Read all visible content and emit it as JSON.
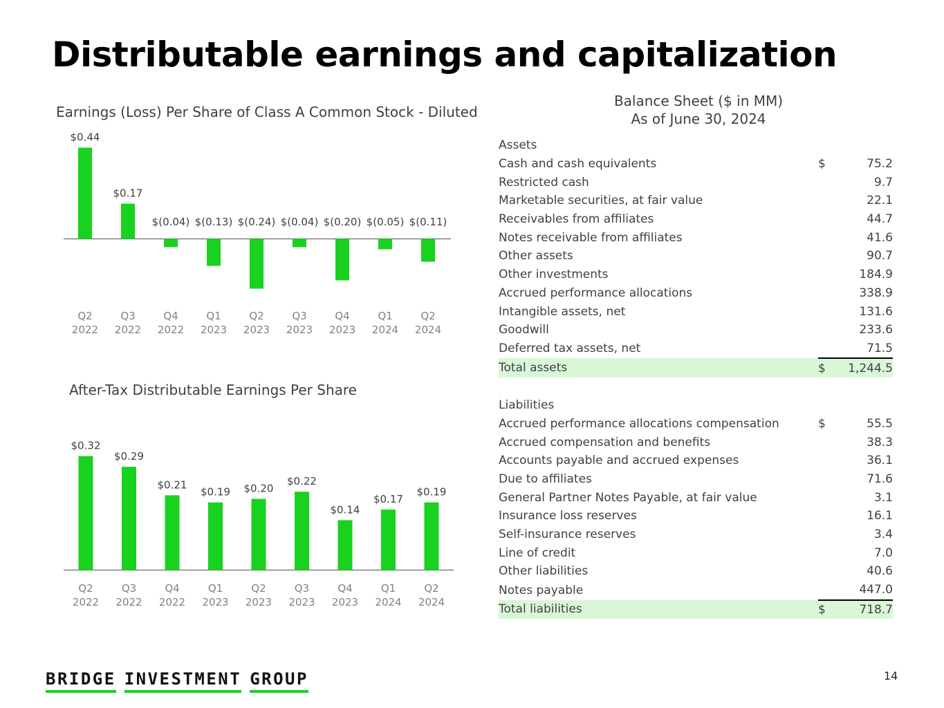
{
  "page": {
    "title": "Distributable earnings and capitalization",
    "page_number": "14",
    "brand_words": [
      "BRIDGE",
      "INVESTMENT",
      "GROUP"
    ]
  },
  "colors": {
    "bar": "#19d11f",
    "total_highlight": "#d9f7d7"
  },
  "chart_data": [
    {
      "type": "bar",
      "title": "Earnings (Loss) Per Share of Class A Common Stock - Diluted",
      "categories": [
        [
          "Q2",
          "2022"
        ],
        [
          "Q3",
          "2022"
        ],
        [
          "Q4",
          "2022"
        ],
        [
          "Q1",
          "2023"
        ],
        [
          "Q2",
          "2023"
        ],
        [
          "Q3",
          "2023"
        ],
        [
          "Q4",
          "2023"
        ],
        [
          "Q1",
          "2024"
        ],
        [
          "Q2",
          "2024"
        ]
      ],
      "values": [
        0.44,
        0.17,
        -0.04,
        -0.13,
        -0.24,
        -0.04,
        -0.2,
        -0.05,
        -0.11
      ],
      "labels": [
        "$0.44",
        "$0.17",
        "$(0.04)",
        "$(0.13)",
        "$(0.24)",
        "$(0.04)",
        "$(0.20)",
        "$(0.05)",
        "$(0.11)"
      ],
      "xlabel": "",
      "ylabel": ""
    },
    {
      "type": "bar",
      "title": "After-Tax Distributable Earnings Per Share",
      "categories": [
        [
          "Q2",
          "2022"
        ],
        [
          "Q3",
          "2022"
        ],
        [
          "Q4",
          "2022"
        ],
        [
          "Q1",
          "2023"
        ],
        [
          "Q2",
          "2023"
        ],
        [
          "Q3",
          "2023"
        ],
        [
          "Q4",
          "2023"
        ],
        [
          "Q1",
          "2024"
        ],
        [
          "Q2",
          "2024"
        ]
      ],
      "values": [
        0.32,
        0.29,
        0.21,
        0.19,
        0.2,
        0.22,
        0.14,
        0.17,
        0.19
      ],
      "labels": [
        "$0.32",
        "$0.29",
        "$0.21",
        "$0.19",
        "$0.20",
        "$0.22",
        "$0.14",
        "$0.17",
        "$0.19"
      ],
      "xlabel": "",
      "ylabel": ""
    }
  ],
  "balance_sheet": {
    "title": "Balance Sheet ($ in MM)",
    "subtitle": "As of June 30, 2024",
    "assets": {
      "header": "Assets",
      "items": [
        {
          "label": "Cash and cash equivalents",
          "cur": "$",
          "value": "75.2"
        },
        {
          "label": "Restricted cash",
          "cur": "",
          "value": "9.7"
        },
        {
          "label": "Marketable securities, at fair value",
          "cur": "",
          "value": "22.1"
        },
        {
          "label": "Receivables from affiliates",
          "cur": "",
          "value": "44.7"
        },
        {
          "label": "Notes receivable from affiliates",
          "cur": "",
          "value": "41.6"
        },
        {
          "label": "Other assets",
          "cur": "",
          "value": "90.7"
        },
        {
          "label": "Other investments",
          "cur": "",
          "value": "184.9"
        },
        {
          "label": "Accrued performance allocations",
          "cur": "",
          "value": "338.9"
        },
        {
          "label": "Intangible assets, net",
          "cur": "",
          "value": "131.6"
        },
        {
          "label": "Goodwill",
          "cur": "",
          "value": "233.6"
        },
        {
          "label": "Deferred tax assets, net",
          "cur": "",
          "value": "71.5"
        }
      ],
      "total": {
        "label": "Total assets",
        "cur": "$",
        "value": "1,244.5"
      }
    },
    "liabilities": {
      "header": "Liabilities",
      "items": [
        {
          "label": "Accrued performance allocations compensation",
          "cur": "$",
          "value": "55.5"
        },
        {
          "label": "Accrued compensation and benefits",
          "cur": "",
          "value": "38.3"
        },
        {
          "label": "Accounts payable and accrued expenses",
          "cur": "",
          "value": "36.1"
        },
        {
          "label": "Due to affiliates",
          "cur": "",
          "value": "71.6"
        },
        {
          "label": "General Partner Notes Payable, at fair value",
          "cur": "",
          "value": "3.1"
        },
        {
          "label": "Insurance loss reserves",
          "cur": "",
          "value": "16.1"
        },
        {
          "label": "Self-insurance reserves",
          "cur": "",
          "value": "3.4"
        },
        {
          "label": "Line of credit",
          "cur": "",
          "value": "7.0"
        },
        {
          "label": "Other liabilities",
          "cur": "",
          "value": "40.6"
        },
        {
          "label": "Notes payable",
          "cur": "",
          "value": "447.0"
        }
      ],
      "total": {
        "label": "Total liabilities",
        "cur": "$",
        "value": "718.7"
      }
    }
  }
}
